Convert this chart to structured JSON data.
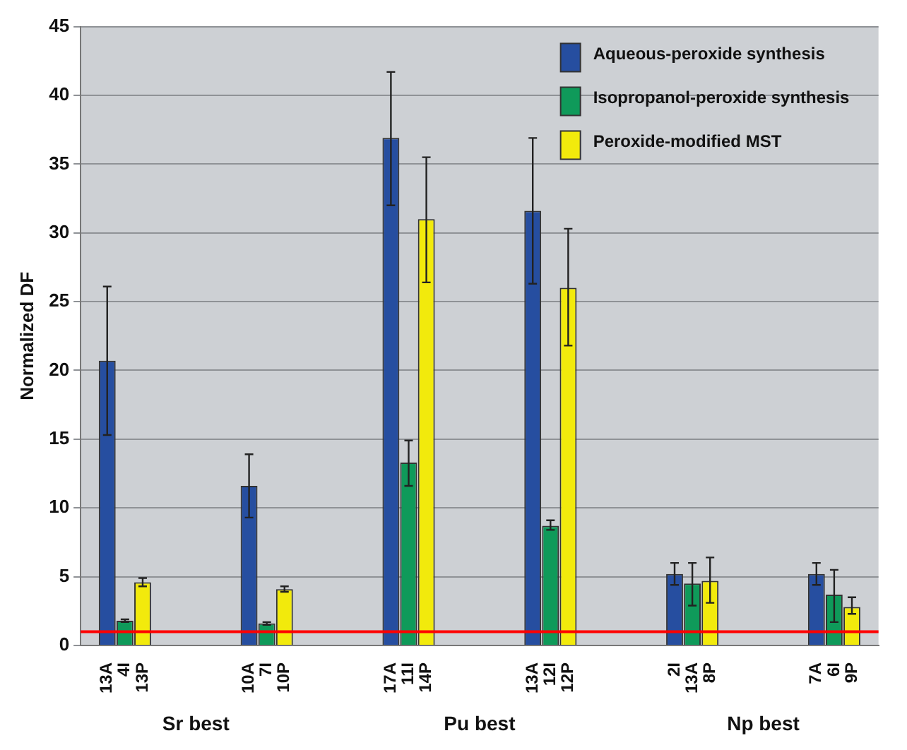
{
  "chart_data": {
    "type": "bar",
    "ylabel": "Normalized DF",
    "categories": [
      null,
      "13A",
      "4I",
      "13P",
      null,
      null,
      null,
      null,
      null,
      "10A",
      "7I",
      "10P",
      null,
      null,
      null,
      null,
      null,
      "17A",
      "11I",
      "14P",
      null,
      null,
      null,
      null,
      null,
      "13A",
      "12I",
      "12P",
      null,
      null,
      null,
      null,
      null,
      "2I",
      "13A",
      "8P",
      null,
      null,
      null,
      null,
      null,
      "7A",
      "6I",
      "9P",
      null
    ],
    "series": [
      {
        "name": "Aqueous-peroxide synthesis",
        "color": "#264ea0",
        "values": [
          null,
          20.7,
          null,
          null,
          null,
          null,
          null,
          null,
          null,
          11.6,
          null,
          null,
          null,
          null,
          null,
          null,
          null,
          36.9,
          null,
          null,
          null,
          null,
          null,
          null,
          null,
          31.6,
          null,
          null,
          null,
          null,
          null,
          null,
          null,
          5.2,
          null,
          null,
          null,
          null,
          null,
          null,
          null,
          5.2,
          null,
          null,
          null
        ],
        "errors": [
          null,
          [
            15.3,
            26.1
          ],
          null,
          null,
          null,
          null,
          null,
          null,
          null,
          [
            9.3,
            13.9
          ],
          null,
          null,
          null,
          null,
          null,
          null,
          null,
          [
            32.0,
            41.7
          ],
          null,
          null,
          null,
          null,
          null,
          null,
          null,
          [
            26.3,
            36.9
          ],
          null,
          null,
          null,
          null,
          null,
          null,
          null,
          [
            4.4,
            6.0
          ],
          null,
          null,
          null,
          null,
          null,
          null,
          null,
          [
            4.4,
            6.0
          ],
          null,
          null,
          null
        ]
      },
      {
        "name": "Isopropanol-peroxide synthesis",
        "color": "#0f9a5a",
        "values": [
          null,
          null,
          1.8,
          null,
          null,
          null,
          null,
          null,
          null,
          null,
          1.6,
          null,
          null,
          null,
          null,
          null,
          null,
          null,
          13.3,
          null,
          null,
          null,
          null,
          null,
          null,
          null,
          8.7,
          null,
          null,
          null,
          null,
          null,
          null,
          null,
          4.5,
          null,
          null,
          null,
          null,
          null,
          null,
          null,
          3.7,
          null,
          null
        ],
        "errors": [
          null,
          null,
          [
            1.7,
            1.9
          ],
          null,
          null,
          null,
          null,
          null,
          null,
          null,
          [
            1.5,
            1.7
          ],
          null,
          null,
          null,
          null,
          null,
          null,
          null,
          [
            11.6,
            14.9
          ],
          null,
          null,
          null,
          null,
          null,
          null,
          null,
          [
            8.4,
            9.1
          ],
          null,
          null,
          null,
          null,
          null,
          null,
          null,
          [
            2.9,
            6.0
          ],
          null,
          null,
          null,
          null,
          null,
          null,
          null,
          [
            1.7,
            5.5
          ],
          null,
          null
        ]
      },
      {
        "name": "Peroxide-modified MST",
        "color": "#f2ea0c",
        "values": [
          null,
          null,
          null,
          4.6,
          null,
          null,
          null,
          null,
          null,
          null,
          null,
          4.1,
          null,
          null,
          null,
          null,
          null,
          null,
          null,
          31.0,
          null,
          null,
          null,
          null,
          null,
          null,
          null,
          26.0,
          null,
          null,
          null,
          null,
          null,
          null,
          null,
          4.7,
          null,
          null,
          null,
          null,
          null,
          null,
          null,
          2.8,
          null
        ],
        "errors": [
          null,
          null,
          null,
          [
            4.3,
            4.9
          ],
          null,
          null,
          null,
          null,
          null,
          null,
          null,
          [
            3.9,
            4.3
          ],
          null,
          null,
          null,
          null,
          null,
          null,
          null,
          [
            26.4,
            35.5
          ],
          null,
          null,
          null,
          null,
          null,
          null,
          null,
          [
            21.8,
            30.3
          ],
          null,
          null,
          null,
          null,
          null,
          null,
          null,
          [
            3.1,
            6.4
          ],
          null,
          null,
          null,
          null,
          null,
          null,
          null,
          [
            2.3,
            3.5
          ],
          null
        ]
      }
    ],
    "ylim": [
      0,
      45
    ],
    "yticks": [
      0,
      5,
      10,
      15,
      20,
      25,
      30,
      35,
      40,
      45
    ],
    "grid": "y",
    "legend": "top right",
    "ref_lines": [
      {
        "axis": "y",
        "value": 1,
        "color": "#ff0000"
      }
    ],
    "annotations": [
      "Sr best",
      "Pu best",
      "Np best"
    ]
  }
}
